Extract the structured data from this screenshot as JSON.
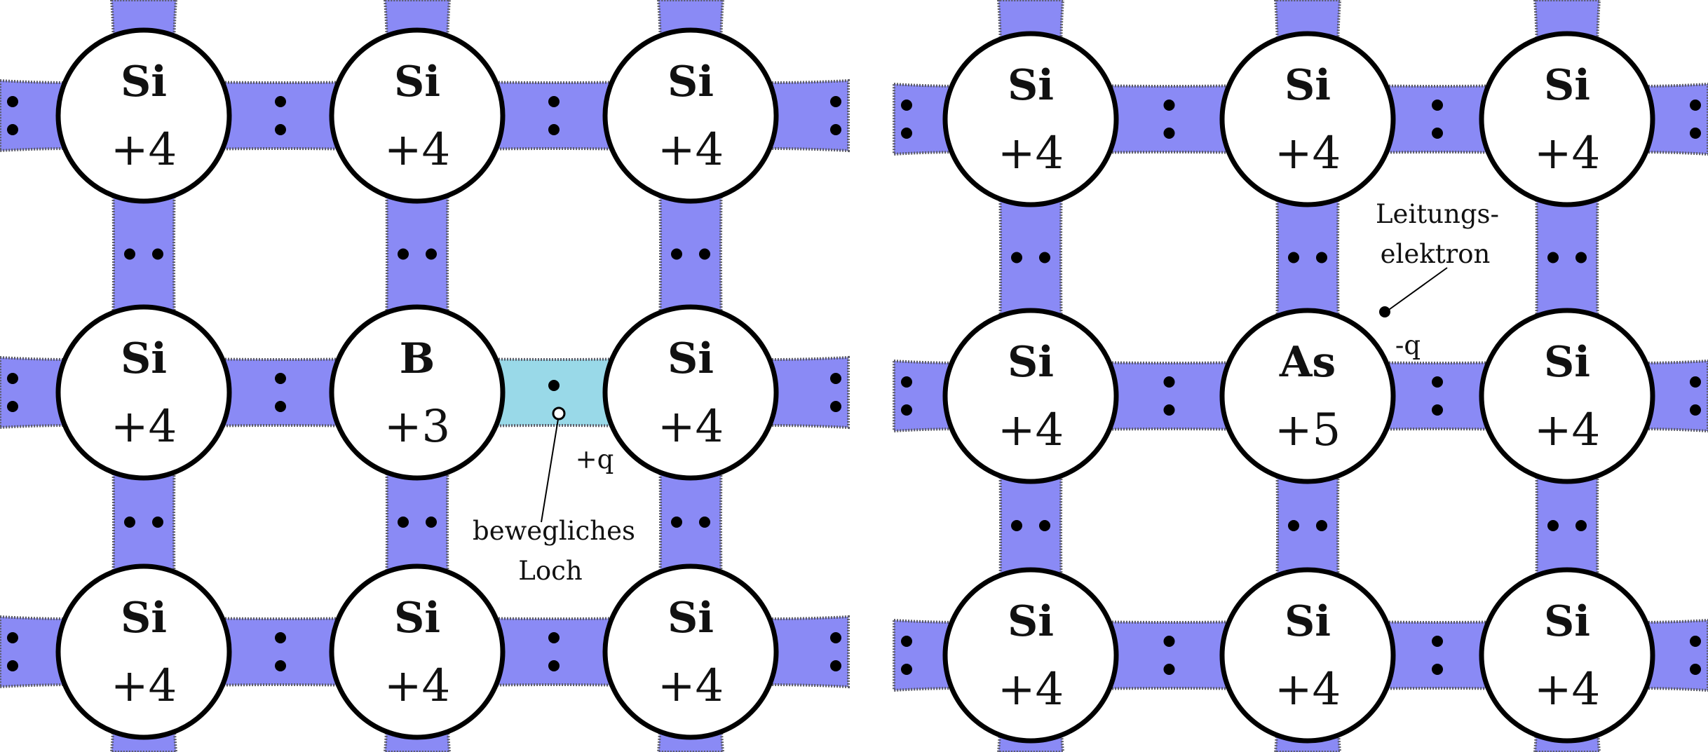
{
  "colors": {
    "bond": "#8a8af5",
    "bond_edge": "#5a5a66",
    "hole_bond": "#99d9e8",
    "atom_fill": "#ffffff",
    "atom_stroke": "#000000",
    "electron": "#000000"
  },
  "lattices": [
    {
      "name": "p-doped",
      "atoms": [
        [
          {
            "symbol": "Si",
            "charge": "+4"
          },
          {
            "symbol": "Si",
            "charge": "+4"
          },
          {
            "symbol": "Si",
            "charge": "+4"
          }
        ],
        [
          {
            "symbol": "Si",
            "charge": "+4"
          },
          {
            "symbol": "B",
            "charge": "+3"
          },
          {
            "symbol": "Si",
            "charge": "+4"
          }
        ],
        [
          {
            "symbol": "Si",
            "charge": "+4"
          },
          {
            "symbol": "Si",
            "charge": "+4"
          },
          {
            "symbol": "Si",
            "charge": "+4"
          }
        ]
      ],
      "annotations": {
        "hole_charge": "+q",
        "hole_label_line1": "bewegliches",
        "hole_label_line2": "Loch"
      }
    },
    {
      "name": "n-doped",
      "atoms": [
        [
          {
            "symbol": "Si",
            "charge": "+4"
          },
          {
            "symbol": "Si",
            "charge": "+4"
          },
          {
            "symbol": "Si",
            "charge": "+4"
          }
        ],
        [
          {
            "symbol": "Si",
            "charge": "+4"
          },
          {
            "symbol": "As",
            "charge": "+5"
          },
          {
            "symbol": "Si",
            "charge": "+4"
          }
        ],
        [
          {
            "symbol": "Si",
            "charge": "+4"
          },
          {
            "symbol": "Si",
            "charge": "+4"
          },
          {
            "symbol": "Si",
            "charge": "+4"
          }
        ]
      ],
      "annotations": {
        "electron_label_line1": "Leitungs-",
        "electron_label_line2": "elektron",
        "electron_charge": "-q"
      }
    }
  ]
}
